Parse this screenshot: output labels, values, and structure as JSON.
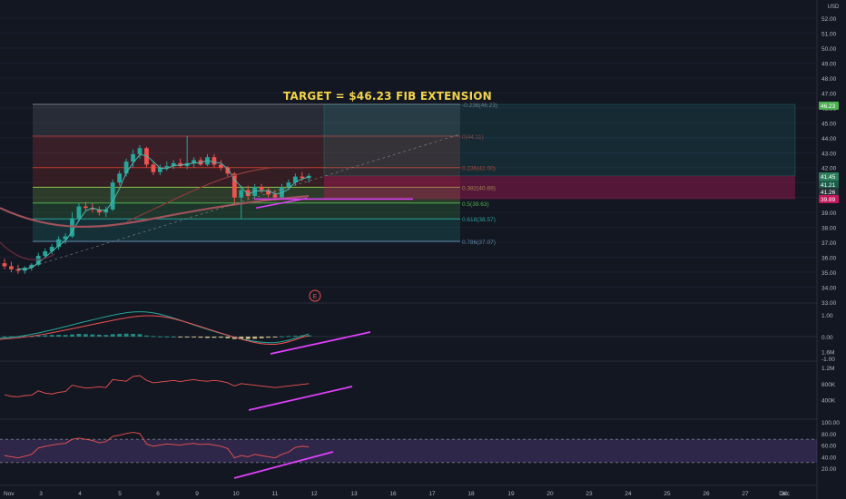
{
  "annotation": "TARGET = $46.23 FIB EXTENSION",
  "currency_label": "USD",
  "event_marker": "E",
  "time_axis_labels": [
    "Nov",
    "3",
    "4",
    "5",
    "6",
    "9",
    "10",
    "11",
    "12",
    "13",
    "16",
    "17",
    "18",
    "19",
    "20",
    "23",
    "24",
    "25",
    "26",
    "27",
    "30",
    "Dec"
  ],
  "price_axis_ticks": [
    "52.00",
    "51.00",
    "50.00",
    "49.00",
    "48.00",
    "47.00",
    "46.00",
    "45.00",
    "44.00",
    "43.00",
    "42.00",
    "41.00",
    "40.00",
    "39.00",
    "38.00",
    "37.00",
    "36.00",
    "35.00",
    "34.00",
    "33.00"
  ],
  "price_badges": [
    {
      "text": "46.23",
      "color": "#4caf50"
    },
    {
      "text": "41.45",
      "color": "#2e7d5b"
    },
    {
      "text": "41.21",
      "color": "#1b5e4a"
    },
    {
      "text": "41.26",
      "color": "#263238"
    },
    {
      "text": "39.89",
      "color": "#c2185b"
    }
  ],
  "fib_levels": [
    {
      "label": "-0.236(46.23)",
      "price": 46.23,
      "color": "#787b86"
    },
    {
      "label": "0(44.11)",
      "price": 44.11,
      "color": "#9e3b3b"
    },
    {
      "label": "0.236(42.00)",
      "price": 42.0,
      "color": "#c0392b"
    },
    {
      "label": "0.382(40.69)",
      "price": 40.69,
      "color": "#8bc34a"
    },
    {
      "label": "0.5(39.63)",
      "price": 39.63,
      "color": "#4caf50"
    },
    {
      "label": "0.618(38.57)",
      "price": 38.57,
      "color": "#26a69a"
    },
    {
      "label": "0.786(37.07)",
      "price": 37.07,
      "color": "#5c8aa8"
    }
  ],
  "macd_axis": [
    "1.00",
    "0.00",
    "-1.00"
  ],
  "volume_axis": [
    "1.6M",
    "1.2M",
    "800K",
    "400K"
  ],
  "rsi_axis": [
    "100.00",
    "80.00",
    "60.00",
    "40.00",
    "20.00"
  ],
  "colors": {
    "background": "#131722",
    "up": "#26a69a",
    "down": "#ef5350",
    "divergence": "#e040fb",
    "target_text": "#f2d34b"
  },
  "chart_data": [
    {
      "type": "candlestick",
      "title": "TARGET = $46.23 FIB EXTENSION",
      "y_unit": "USD",
      "ylim": [
        33,
        52
      ],
      "x_categories": [
        "Nov",
        "3",
        "4",
        "5",
        "6",
        "9",
        "10",
        "11",
        "12"
      ],
      "candles": [
        {
          "o": 35.6,
          "h": 35.9,
          "l": 35.2,
          "c": 35.4
        },
        {
          "o": 35.4,
          "h": 35.7,
          "l": 35.0,
          "c": 35.2
        },
        {
          "o": 35.2,
          "h": 35.5,
          "l": 34.9,
          "c": 35.1
        },
        {
          "o": 35.1,
          "h": 35.4,
          "l": 34.9,
          "c": 35.3
        },
        {
          "o": 35.3,
          "h": 35.6,
          "l": 35.1,
          "c": 35.5
        },
        {
          "o": 35.5,
          "h": 36.3,
          "l": 35.4,
          "c": 36.1
        },
        {
          "o": 36.1,
          "h": 36.6,
          "l": 35.9,
          "c": 36.4
        },
        {
          "o": 36.4,
          "h": 36.9,
          "l": 36.2,
          "c": 36.7
        },
        {
          "o": 36.7,
          "h": 37.4,
          "l": 36.5,
          "c": 37.2
        },
        {
          "o": 37.2,
          "h": 37.6,
          "l": 36.9,
          "c": 37.4
        },
        {
          "o": 37.4,
          "h": 39.0,
          "l": 37.3,
          "c": 38.6
        },
        {
          "o": 38.6,
          "h": 39.6,
          "l": 38.4,
          "c": 39.4
        },
        {
          "o": 39.4,
          "h": 39.7,
          "l": 39.1,
          "c": 39.3
        },
        {
          "o": 39.3,
          "h": 39.6,
          "l": 39.0,
          "c": 39.2
        },
        {
          "o": 39.2,
          "h": 39.4,
          "l": 38.8,
          "c": 39.0
        },
        {
          "o": 39.0,
          "h": 39.4,
          "l": 38.7,
          "c": 39.2
        },
        {
          "o": 39.2,
          "h": 41.2,
          "l": 39.1,
          "c": 41.0
        },
        {
          "o": 41.0,
          "h": 41.8,
          "l": 40.8,
          "c": 41.6
        },
        {
          "o": 41.6,
          "h": 42.6,
          "l": 41.4,
          "c": 42.4
        },
        {
          "o": 42.4,
          "h": 43.2,
          "l": 42.0,
          "c": 42.9
        },
        {
          "o": 42.9,
          "h": 43.5,
          "l": 42.6,
          "c": 43.3
        },
        {
          "o": 43.3,
          "h": 43.4,
          "l": 42.0,
          "c": 42.2
        },
        {
          "o": 42.2,
          "h": 42.4,
          "l": 41.5,
          "c": 41.7
        },
        {
          "o": 41.7,
          "h": 42.2,
          "l": 41.5,
          "c": 42.0
        },
        {
          "o": 42.0,
          "h": 42.4,
          "l": 41.8,
          "c": 42.1
        },
        {
          "o": 42.1,
          "h": 42.5,
          "l": 41.9,
          "c": 42.3
        },
        {
          "o": 42.3,
          "h": 42.6,
          "l": 42.0,
          "c": 42.1
        },
        {
          "o": 42.1,
          "h": 44.1,
          "l": 41.9,
          "c": 42.3
        },
        {
          "o": 42.3,
          "h": 42.7,
          "l": 42.0,
          "c": 42.5
        },
        {
          "o": 42.5,
          "h": 42.7,
          "l": 42.1,
          "c": 42.2
        },
        {
          "o": 42.2,
          "h": 42.9,
          "l": 42.1,
          "c": 42.7
        },
        {
          "o": 42.7,
          "h": 42.9,
          "l": 42.0,
          "c": 42.2
        },
        {
          "o": 42.2,
          "h": 42.5,
          "l": 41.8,
          "c": 42.0
        },
        {
          "o": 42.0,
          "h": 42.1,
          "l": 41.4,
          "c": 41.6
        },
        {
          "o": 41.6,
          "h": 41.7,
          "l": 39.5,
          "c": 40.0
        },
        {
          "o": 40.0,
          "h": 40.8,
          "l": 38.6,
          "c": 40.5
        },
        {
          "o": 40.5,
          "h": 40.8,
          "l": 39.9,
          "c": 40.1
        },
        {
          "o": 40.1,
          "h": 40.9,
          "l": 40.0,
          "c": 40.7
        },
        {
          "o": 40.7,
          "h": 40.9,
          "l": 40.3,
          "c": 40.5
        },
        {
          "o": 40.5,
          "h": 40.7,
          "l": 40.0,
          "c": 40.2
        },
        {
          "o": 40.2,
          "h": 40.5,
          "l": 39.8,
          "c": 40.0
        },
        {
          "o": 40.0,
          "h": 40.9,
          "l": 39.9,
          "c": 40.7
        },
        {
          "o": 40.7,
          "h": 41.2,
          "l": 40.5,
          "c": 41.0
        },
        {
          "o": 41.0,
          "h": 41.6,
          "l": 40.8,
          "c": 41.4
        },
        {
          "o": 41.4,
          "h": 41.7,
          "l": 41.1,
          "c": 41.3
        },
        {
          "o": 41.3,
          "h": 41.6,
          "l": 41.0,
          "c": 41.45
        }
      ],
      "volume_series": [
        520,
        480,
        470,
        500,
        510,
        620,
        560,
        540,
        580,
        600,
        760,
        720,
        690,
        700,
        720,
        700,
        900,
        880,
        860,
        980,
        1000,
        880,
        820,
        840,
        860,
        880,
        850,
        880,
        900,
        870,
        860,
        880,
        860,
        820,
        740,
        800,
        780,
        760,
        740,
        720,
        700,
        720,
        740,
        760,
        780,
        800
      ],
      "rsi_series": [
        42,
        40,
        38,
        41,
        44,
        55,
        58,
        60,
        62,
        63,
        70,
        72,
        70,
        68,
        64,
        66,
        75,
        77,
        80,
        82,
        80,
        62,
        58,
        60,
        62,
        61,
        60,
        62,
        63,
        61,
        62,
        60,
        58,
        54,
        38,
        42,
        40,
        44,
        42,
        40,
        38,
        44,
        48,
        56,
        58,
        57
      ]
    }
  ]
}
